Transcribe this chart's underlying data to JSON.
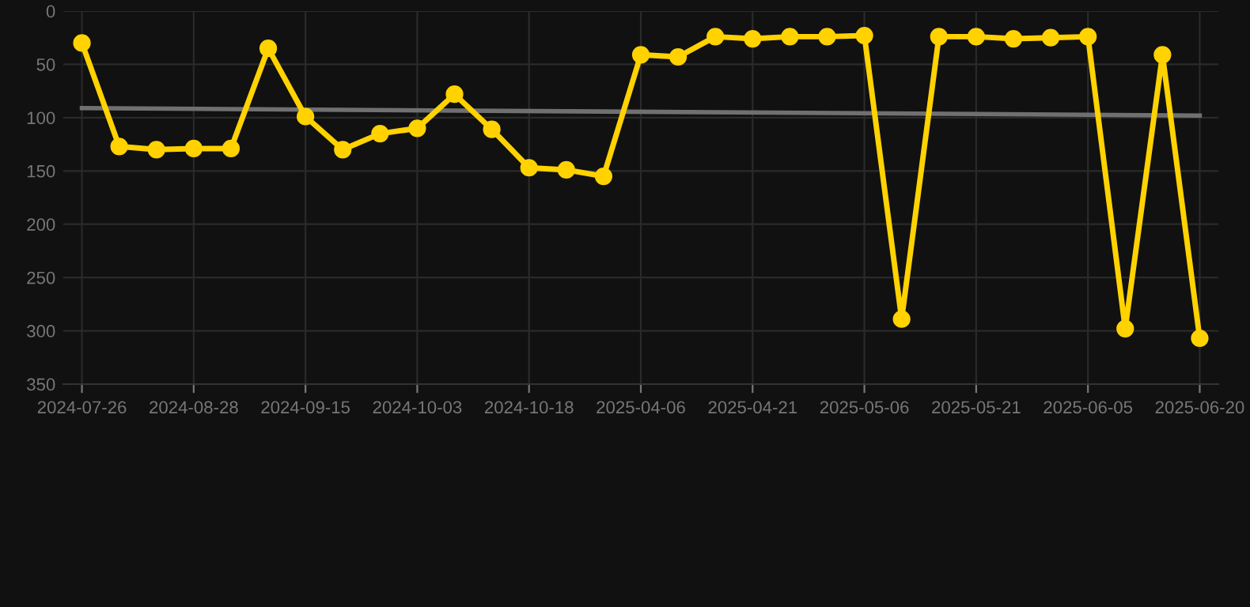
{
  "chart_data": {
    "type": "line",
    "categories": [
      "2024-07-26",
      null,
      null,
      "2024-08-28",
      null,
      null,
      "2024-09-15",
      null,
      null,
      "2024-10-03",
      null,
      null,
      "2024-10-18",
      null,
      null,
      "2025-04-06",
      null,
      null,
      "2025-04-21",
      null,
      null,
      "2025-05-06",
      null,
      null,
      "2025-05-21",
      null,
      null,
      "2025-06-05",
      null,
      null,
      "2025-06-20"
    ],
    "series": [
      {
        "color": "#ffd200",
        "marker": "circle",
        "values": [
          30,
          127,
          130,
          129,
          129,
          35,
          99,
          130,
          115,
          110,
          78,
          111,
          147,
          149,
          155,
          41,
          43,
          24,
          26,
          24,
          24,
          23,
          289,
          24,
          24,
          26,
          25,
          24,
          298,
          41,
          307
        ]
      },
      {
        "color": "#707070",
        "marker": "none",
        "values": [
          91,
          null,
          null,
          null,
          null,
          null,
          null,
          null,
          null,
          null,
          null,
          null,
          null,
          null,
          null,
          null,
          null,
          null,
          null,
          null,
          null,
          null,
          null,
          null,
          null,
          null,
          null,
          null,
          null,
          null,
          98
        ]
      }
    ],
    "ylim": [
      350,
      0
    ],
    "yticks": [
      0,
      50,
      100,
      150,
      200,
      250,
      300,
      350
    ],
    "grid": true
  }
}
